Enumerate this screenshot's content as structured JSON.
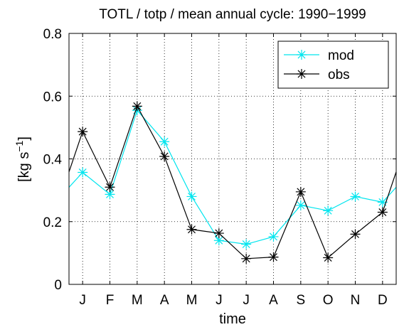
{
  "chart_data": {
    "type": "line",
    "title": "TOTL / totp / mean annual cycle: 1990−1999",
    "x_label": "time",
    "y_label": {
      "text": "[kg s",
      "superscript": "−1",
      "close": "]"
    },
    "categories": [
      "J",
      "F",
      "M",
      "A",
      "M",
      "J",
      "J",
      "A",
      "S",
      "O",
      "N",
      "D"
    ],
    "series": [
      {
        "name": "mod",
        "color": "#00e5ee",
        "values": [
          0.357,
          0.287,
          0.555,
          0.455,
          0.28,
          0.14,
          0.128,
          0.152,
          0.252,
          0.235,
          0.28,
          0.262
        ]
      },
      {
        "name": "obs",
        "color": "#000000",
        "values": [
          0.487,
          0.31,
          0.568,
          0.408,
          0.175,
          0.163,
          0.082,
          0.087,
          0.295,
          0.085,
          0.16,
          0.23
        ]
      }
    ],
    "ylim": [
      0,
      0.8
    ],
    "yticks": [
      0,
      0.2,
      0.4,
      0.6,
      0.8
    ],
    "grid": true,
    "legend": "northeast",
    "wrap": true
  }
}
